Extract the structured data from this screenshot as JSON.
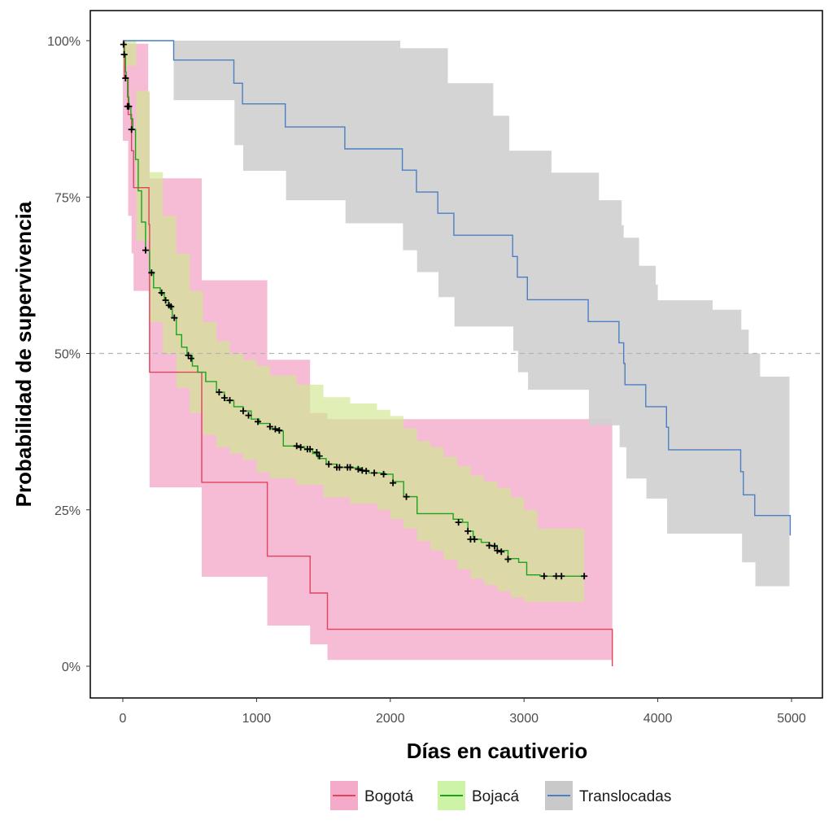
{
  "chart_data": {
    "type": "line",
    "subtype": "kaplan-meier-survival",
    "title": "",
    "xlabel": "Días en cautiverio",
    "ylabel": "Probabilidad de supervivencia",
    "xlim": [
      -250,
      5250
    ],
    "ylim": [
      -4.5,
      105.5
    ],
    "x_ticks": [
      0,
      1000,
      2000,
      3000,
      4000,
      5000
    ],
    "x_tick_labels": [
      "0",
      "1000",
      "2000",
      "3000",
      "4000",
      "5000"
    ],
    "y_ticks": [
      0,
      25,
      50,
      75,
      100
    ],
    "y_tick_labels": [
      "0%",
      "25%",
      "50%",
      "75%",
      "100%"
    ],
    "grid": false,
    "reference_line": {
      "y": 50,
      "style": "dashed",
      "color": "#b3b3b3"
    },
    "legend": {
      "position": "bottom",
      "entries": [
        "Bogotá",
        "Bojacá",
        "Translocadas"
      ]
    },
    "series": [
      {
        "name": "Bogotá",
        "line_color": "#e0435a",
        "band_color": "#f3a6c8",
        "steps": [
          [
            0,
            100
          ],
          [
            12,
            94.1
          ],
          [
            40,
            88.2
          ],
          [
            65,
            82.4
          ],
          [
            80,
            76.5
          ],
          [
            195,
            70.6
          ],
          [
            200,
            47.0
          ],
          [
            590,
            29.4
          ],
          [
            1080,
            17.6
          ],
          [
            1400,
            11.7
          ],
          [
            1530,
            5.9
          ],
          [
            3650,
            5.9
          ],
          [
            3660,
            0
          ]
        ],
        "upper": [
          [
            0,
            99.5
          ],
          [
            175,
            99.5
          ],
          [
            190,
            91.7
          ],
          [
            200,
            78
          ],
          [
            590,
            61.7
          ],
          [
            1080,
            49
          ],
          [
            1400,
            40.5
          ],
          [
            1530,
            39.5
          ],
          [
            3660,
            39.5
          ]
        ],
        "lower": [
          [
            0,
            84
          ],
          [
            12,
            84
          ],
          [
            40,
            72
          ],
          [
            65,
            66
          ],
          [
            80,
            60
          ],
          [
            195,
            47
          ],
          [
            200,
            28.6
          ],
          [
            590,
            14.3
          ],
          [
            1080,
            6.5
          ],
          [
            1400,
            3.5
          ],
          [
            1530,
            1
          ],
          [
            3660,
            1
          ]
        ],
        "censored": []
      },
      {
        "name": "Bojacá",
        "line_color": "#1aa31a",
        "band_color": "#cfe68f",
        "steps": [
          [
            0,
            100
          ],
          [
            5,
            99.4
          ],
          [
            10,
            97.8
          ],
          [
            20,
            95
          ],
          [
            25,
            94
          ],
          [
            35,
            91
          ],
          [
            45,
            89.5
          ],
          [
            60,
            87.5
          ],
          [
            75,
            85.8
          ],
          [
            95,
            81
          ],
          [
            115,
            76
          ],
          [
            140,
            71
          ],
          [
            170,
            66.5
          ],
          [
            200,
            63
          ],
          [
            230,
            60.5
          ],
          [
            280,
            59.5
          ],
          [
            310,
            58.5
          ],
          [
            340,
            57.5
          ],
          [
            370,
            55.7
          ],
          [
            400,
            53
          ],
          [
            440,
            51
          ],
          [
            480,
            49.7
          ],
          [
            520,
            48
          ],
          [
            560,
            47
          ],
          [
            620,
            45.5
          ],
          [
            700,
            43.8
          ],
          [
            760,
            42.5
          ],
          [
            830,
            41.5
          ],
          [
            900,
            40.8
          ],
          [
            960,
            39.5
          ],
          [
            1020,
            38.8
          ],
          [
            1100,
            38
          ],
          [
            1160,
            37.6
          ],
          [
            1200,
            35.2
          ],
          [
            1310,
            35.1
          ],
          [
            1360,
            34.6
          ],
          [
            1420,
            34
          ],
          [
            1460,
            33.2
          ],
          [
            1520,
            32.3
          ],
          [
            1600,
            31.8
          ],
          [
            1700,
            31.7
          ],
          [
            1780,
            31.3
          ],
          [
            1840,
            30.9
          ],
          [
            1960,
            30.7
          ],
          [
            2020,
            29.5
          ],
          [
            2100,
            27.1
          ],
          [
            2200,
            24.4
          ],
          [
            2380,
            24.4
          ],
          [
            2470,
            23.5
          ],
          [
            2540,
            23
          ],
          [
            2580,
            21.6
          ],
          [
            2620,
            20.3
          ],
          [
            2680,
            19.8
          ],
          [
            2740,
            19.3
          ],
          [
            2800,
            18.5
          ],
          [
            2880,
            17.2
          ],
          [
            2960,
            16.6
          ],
          [
            3020,
            14.6
          ],
          [
            3120,
            14.4
          ],
          [
            3450,
            14.4
          ]
        ],
        "upper": [
          [
            0,
            100
          ],
          [
            100,
            92
          ],
          [
            200,
            79
          ],
          [
            300,
            72
          ],
          [
            400,
            66
          ],
          [
            500,
            60
          ],
          [
            600,
            55
          ],
          [
            700,
            52
          ],
          [
            800,
            50
          ],
          [
            900,
            49
          ],
          [
            1000,
            48
          ],
          [
            1100,
            46.5
          ],
          [
            1300,
            45
          ],
          [
            1500,
            43
          ],
          [
            1700,
            42
          ],
          [
            1900,
            41
          ],
          [
            2000,
            40
          ],
          [
            2100,
            38
          ],
          [
            2200,
            36
          ],
          [
            2300,
            35
          ],
          [
            2400,
            33.5
          ],
          [
            2500,
            32
          ],
          [
            2600,
            30.5
          ],
          [
            2700,
            29.5
          ],
          [
            2800,
            28.5
          ],
          [
            2900,
            27
          ],
          [
            3000,
            25
          ],
          [
            3100,
            22
          ],
          [
            3450,
            22
          ]
        ],
        "lower": [
          [
            0,
            96
          ],
          [
            100,
            68
          ],
          [
            200,
            55
          ],
          [
            300,
            50
          ],
          [
            400,
            44.5
          ],
          [
            500,
            40.5
          ],
          [
            600,
            37
          ],
          [
            700,
            35
          ],
          [
            800,
            34
          ],
          [
            900,
            33
          ],
          [
            1000,
            31
          ],
          [
            1100,
            30
          ],
          [
            1300,
            29
          ],
          [
            1500,
            27
          ],
          [
            1700,
            26
          ],
          [
            1900,
            25
          ],
          [
            2000,
            23.5
          ],
          [
            2100,
            22
          ],
          [
            2200,
            20
          ],
          [
            2300,
            18.5
          ],
          [
            2400,
            17
          ],
          [
            2500,
            15.5
          ],
          [
            2600,
            14
          ],
          [
            2700,
            13
          ],
          [
            2800,
            12
          ],
          [
            2900,
            11
          ],
          [
            3000,
            10.3
          ],
          [
            3450,
            10.3
          ]
        ],
        "censored": [
          [
            5,
            99.4
          ],
          [
            10,
            97.8
          ],
          [
            20,
            94
          ],
          [
            35,
            89.5
          ],
          [
            45,
            89.5
          ],
          [
            65,
            85.8
          ],
          [
            170,
            66.5
          ],
          [
            215,
            62.9
          ],
          [
            290,
            59.7
          ],
          [
            320,
            58.5
          ],
          [
            345,
            57.7
          ],
          [
            360,
            57.5
          ],
          [
            385,
            55.7
          ],
          [
            490,
            49.7
          ],
          [
            510,
            49.2
          ],
          [
            720,
            43.8
          ],
          [
            760,
            42.9
          ],
          [
            800,
            42.5
          ],
          [
            900,
            40.8
          ],
          [
            940,
            40.1
          ],
          [
            1010,
            39.1
          ],
          [
            1100,
            38.3
          ],
          [
            1140,
            37.9
          ],
          [
            1170,
            37.7
          ],
          [
            1300,
            35.2
          ],
          [
            1330,
            35
          ],
          [
            1380,
            34.7
          ],
          [
            1400,
            34.7
          ],
          [
            1450,
            34.2
          ],
          [
            1470,
            33.6
          ],
          [
            1540,
            32.3
          ],
          [
            1600,
            31.8
          ],
          [
            1620,
            31.8
          ],
          [
            1680,
            31.8
          ],
          [
            1700,
            31.8
          ],
          [
            1760,
            31.5
          ],
          [
            1790,
            31.3
          ],
          [
            1820,
            31.2
          ],
          [
            1880,
            30.9
          ],
          [
            1950,
            30.7
          ],
          [
            2020,
            29.3
          ],
          [
            2120,
            27.1
          ],
          [
            2510,
            23
          ],
          [
            2580,
            21.6
          ],
          [
            2600,
            20.3
          ],
          [
            2630,
            20.3
          ],
          [
            2740,
            19.3
          ],
          [
            2780,
            19.2
          ],
          [
            2800,
            18.5
          ],
          [
            2830,
            18.3
          ],
          [
            2880,
            17.1
          ],
          [
            3150,
            14.4
          ],
          [
            3240,
            14.4
          ],
          [
            3280,
            14.4
          ],
          [
            3450,
            14.4
          ]
        ]
      },
      {
        "name": "Translocadas",
        "line_color": "#4a7fc4",
        "band_color": "#cfcfcf",
        "steps": [
          [
            0,
            100
          ],
          [
            380,
            96.9
          ],
          [
            830,
            93.2
          ],
          [
            895,
            89.9
          ],
          [
            1215,
            86.2
          ],
          [
            1660,
            82.7
          ],
          [
            2090,
            79.3
          ],
          [
            2195,
            75.8
          ],
          [
            2355,
            72.4
          ],
          [
            2475,
            68.9
          ],
          [
            2915,
            65.5
          ],
          [
            2950,
            62.2
          ],
          [
            3025,
            58.6
          ],
          [
            3480,
            55.1
          ],
          [
            3710,
            51.7
          ],
          [
            3745,
            48.4
          ],
          [
            3755,
            45.0
          ],
          [
            3910,
            41.5
          ],
          [
            4065,
            38.2
          ],
          [
            4080,
            34.6
          ],
          [
            4620,
            31.1
          ],
          [
            4640,
            27.4
          ],
          [
            4725,
            24.1
          ],
          [
            4985,
            24.1
          ],
          [
            4990,
            20.9
          ]
        ],
        "upper": [
          [
            380,
            100
          ],
          [
            2070,
            100
          ],
          [
            2075,
            98.8
          ],
          [
            2425,
            98.8
          ],
          [
            2430,
            93.2
          ],
          [
            2765,
            93.2
          ],
          [
            2770,
            88
          ],
          [
            2885,
            88
          ],
          [
            2890,
            82.4
          ],
          [
            3200,
            82.4
          ],
          [
            3205,
            78.9
          ],
          [
            3555,
            78.9
          ],
          [
            3560,
            74.5
          ],
          [
            3710,
            74.5
          ],
          [
            3730,
            70.5
          ],
          [
            3745,
            68.5
          ],
          [
            3850,
            68.5
          ],
          [
            3860,
            64
          ],
          [
            3970,
            64
          ],
          [
            3985,
            61
          ],
          [
            4000,
            58.5
          ],
          [
            4405,
            58.5
          ],
          [
            4410,
            57
          ],
          [
            4620,
            57
          ],
          [
            4625,
            53.8
          ],
          [
            4660,
            53.8
          ],
          [
            4680,
            50
          ],
          [
            4760,
            50
          ],
          [
            4765,
            46.3
          ],
          [
            4985,
            46.3
          ]
        ],
        "lower": [
          [
            380,
            90.5
          ],
          [
            830,
            90.5
          ],
          [
            835,
            83.3
          ],
          [
            895,
            83.3
          ],
          [
            900,
            79.2
          ],
          [
            1215,
            79.2
          ],
          [
            1220,
            74.5
          ],
          [
            1660,
            74.5
          ],
          [
            1665,
            70.8
          ],
          [
            2090,
            70.8
          ],
          [
            2095,
            66.5
          ],
          [
            2195,
            66.5
          ],
          [
            2200,
            63
          ],
          [
            2355,
            63
          ],
          [
            2360,
            59
          ],
          [
            2475,
            59
          ],
          [
            2480,
            54.3
          ],
          [
            2915,
            54.3
          ],
          [
            2920,
            50.4
          ],
          [
            2950,
            50.4
          ],
          [
            2955,
            47
          ],
          [
            3025,
            47
          ],
          [
            3030,
            44.2
          ],
          [
            3480,
            44.2
          ],
          [
            3485,
            38.5
          ],
          [
            3710,
            38.5
          ],
          [
            3715,
            35
          ],
          [
            3760,
            35
          ],
          [
            3765,
            30
          ],
          [
            3910,
            30
          ],
          [
            3915,
            26.8
          ],
          [
            4065,
            26.8
          ],
          [
            4070,
            21.2
          ],
          [
            4620,
            21.2
          ],
          [
            4630,
            16.6
          ],
          [
            4725,
            16.6
          ],
          [
            4730,
            12.8
          ],
          [
            4985,
            12.8
          ]
        ],
        "censored": []
      }
    ]
  }
}
